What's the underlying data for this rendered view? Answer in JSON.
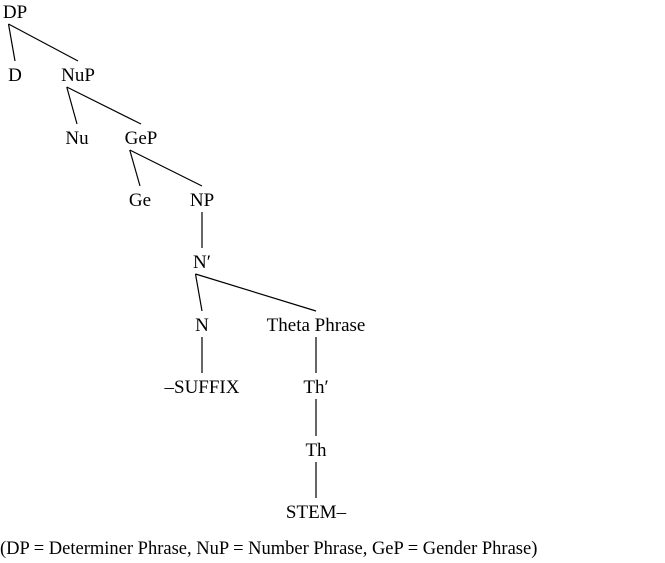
{
  "tree": {
    "nodes": [
      {
        "id": "dp",
        "label": "DP"
      },
      {
        "id": "d",
        "label": "D"
      },
      {
        "id": "nup",
        "label": "NuP"
      },
      {
        "id": "nu",
        "label": "Nu"
      },
      {
        "id": "gep",
        "label": "GeP"
      },
      {
        "id": "ge",
        "label": "Ge"
      },
      {
        "id": "np",
        "label": "NP"
      },
      {
        "id": "nbar",
        "label": "N′"
      },
      {
        "id": "n",
        "label": "N"
      },
      {
        "id": "theta",
        "label": "Theta Phrase"
      },
      {
        "id": "suffix",
        "label": "–SUFFIX"
      },
      {
        "id": "thbar",
        "label": "Th′"
      },
      {
        "id": "th",
        "label": "Th"
      },
      {
        "id": "stem",
        "label": "STEM–"
      }
    ],
    "edges": [
      [
        "dp",
        "d"
      ],
      [
        "dp",
        "nup"
      ],
      [
        "nup",
        "nu"
      ],
      [
        "nup",
        "gep"
      ],
      [
        "gep",
        "ge"
      ],
      [
        "gep",
        "np"
      ],
      [
        "np",
        "nbar"
      ],
      [
        "nbar",
        "n"
      ],
      [
        "nbar",
        "theta"
      ],
      [
        "n",
        "suffix"
      ],
      [
        "theta",
        "thbar"
      ],
      [
        "thbar",
        "th"
      ],
      [
        "th",
        "stem"
      ]
    ]
  },
  "caption": "(DP = Determiner Phrase, NuP = Number Phrase, GeP = Gender Phrase)"
}
